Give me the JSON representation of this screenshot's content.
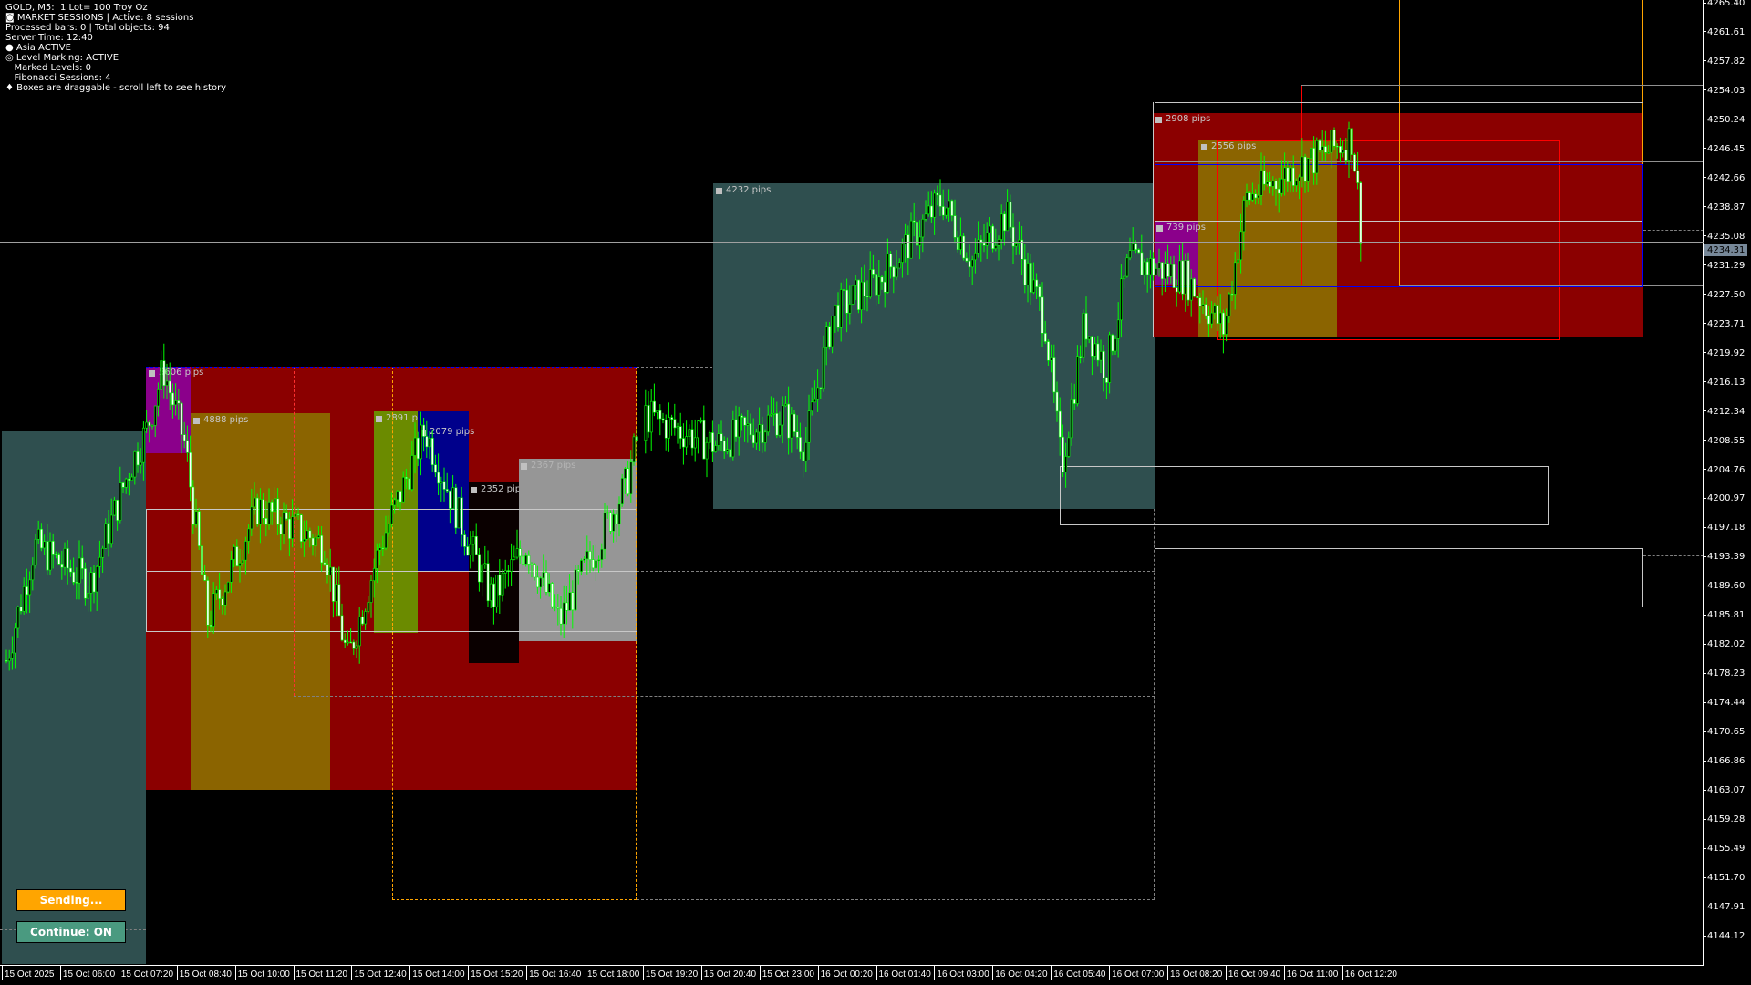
{
  "info": {
    "line1": "GOLD, M5:  1 Lot= 100 Troy Oz",
    "line2": "◙ MARKET SESSIONS | Active: 8 sessions",
    "line3": "Processed bars: 0 | Total objects: 94",
    "line4": "Server Time: 12:40",
    "line5": "● Asia ACTIVE",
    "line6": "◎ Level Marking: ACTIVE",
    "line7": "   Marked Levels: 0",
    "line8": "   Fibonacci Sessions: 4",
    "line9": "♦ Boxes are draggable - scroll left to see history"
  },
  "boxes": {
    "b5606": "5606 pips",
    "b4888": "4888 pips",
    "b2891": "2891 pips",
    "b2079": "2079 pips",
    "b2352": "2352 pips",
    "b2367": "2367 pips",
    "b4232": "4232 pips",
    "b2908": "2908 pips",
    "b2556": "2556 pips",
    "b739": "739 pips"
  },
  "colors": {
    "bull": "#00ff00",
    "session_red": "#8b0000",
    "session_olive": "#8b6400",
    "teal": "#2f4f4f",
    "purple": "#8b008b",
    "blue": "#00008b",
    "gray": "#969696",
    "yellowgreen": "#6b8b00"
  },
  "buttons": {
    "sending": "Sending...",
    "continue": "Continue: ON"
  },
  "current_price": "4234.31",
  "price_axis": [
    "4265.40",
    "4261.61",
    "4257.82",
    "4254.03",
    "4250.24",
    "4246.45",
    "4242.66",
    "4238.87",
    "4235.08",
    "4231.29",
    "4227.50",
    "4223.71",
    "4219.92",
    "4216.13",
    "4212.34",
    "4208.55",
    "4204.76",
    "4200.97",
    "4197.18",
    "4193.39",
    "4189.60",
    "4185.81",
    "4182.02",
    "4178.23",
    "4174.44",
    "4170.65",
    "4166.86",
    "4163.07",
    "4159.28",
    "4155.49",
    "4151.70",
    "4147.91",
    "4144.12"
  ],
  "time_axis": [
    "15 Oct 2025",
    "15 Oct 06:00",
    "15 Oct 07:20",
    "15 Oct 08:40",
    "15 Oct 10:00",
    "15 Oct 11:20",
    "15 Oct 12:40",
    "15 Oct 14:00",
    "15 Oct 15:20",
    "15 Oct 16:40",
    "15 Oct 18:00",
    "15 Oct 19:20",
    "15 Oct 20:40",
    "15 Oct 23:00",
    "16 Oct 00:20",
    "16 Oct 01:40",
    "16 Oct 03:00",
    "16 Oct 04:20",
    "16 Oct 05:40",
    "16 Oct 07:00",
    "16 Oct 08:20",
    "16 Oct 09:40",
    "16 Oct 11:00",
    "16 Oct 12:20"
  ]
}
